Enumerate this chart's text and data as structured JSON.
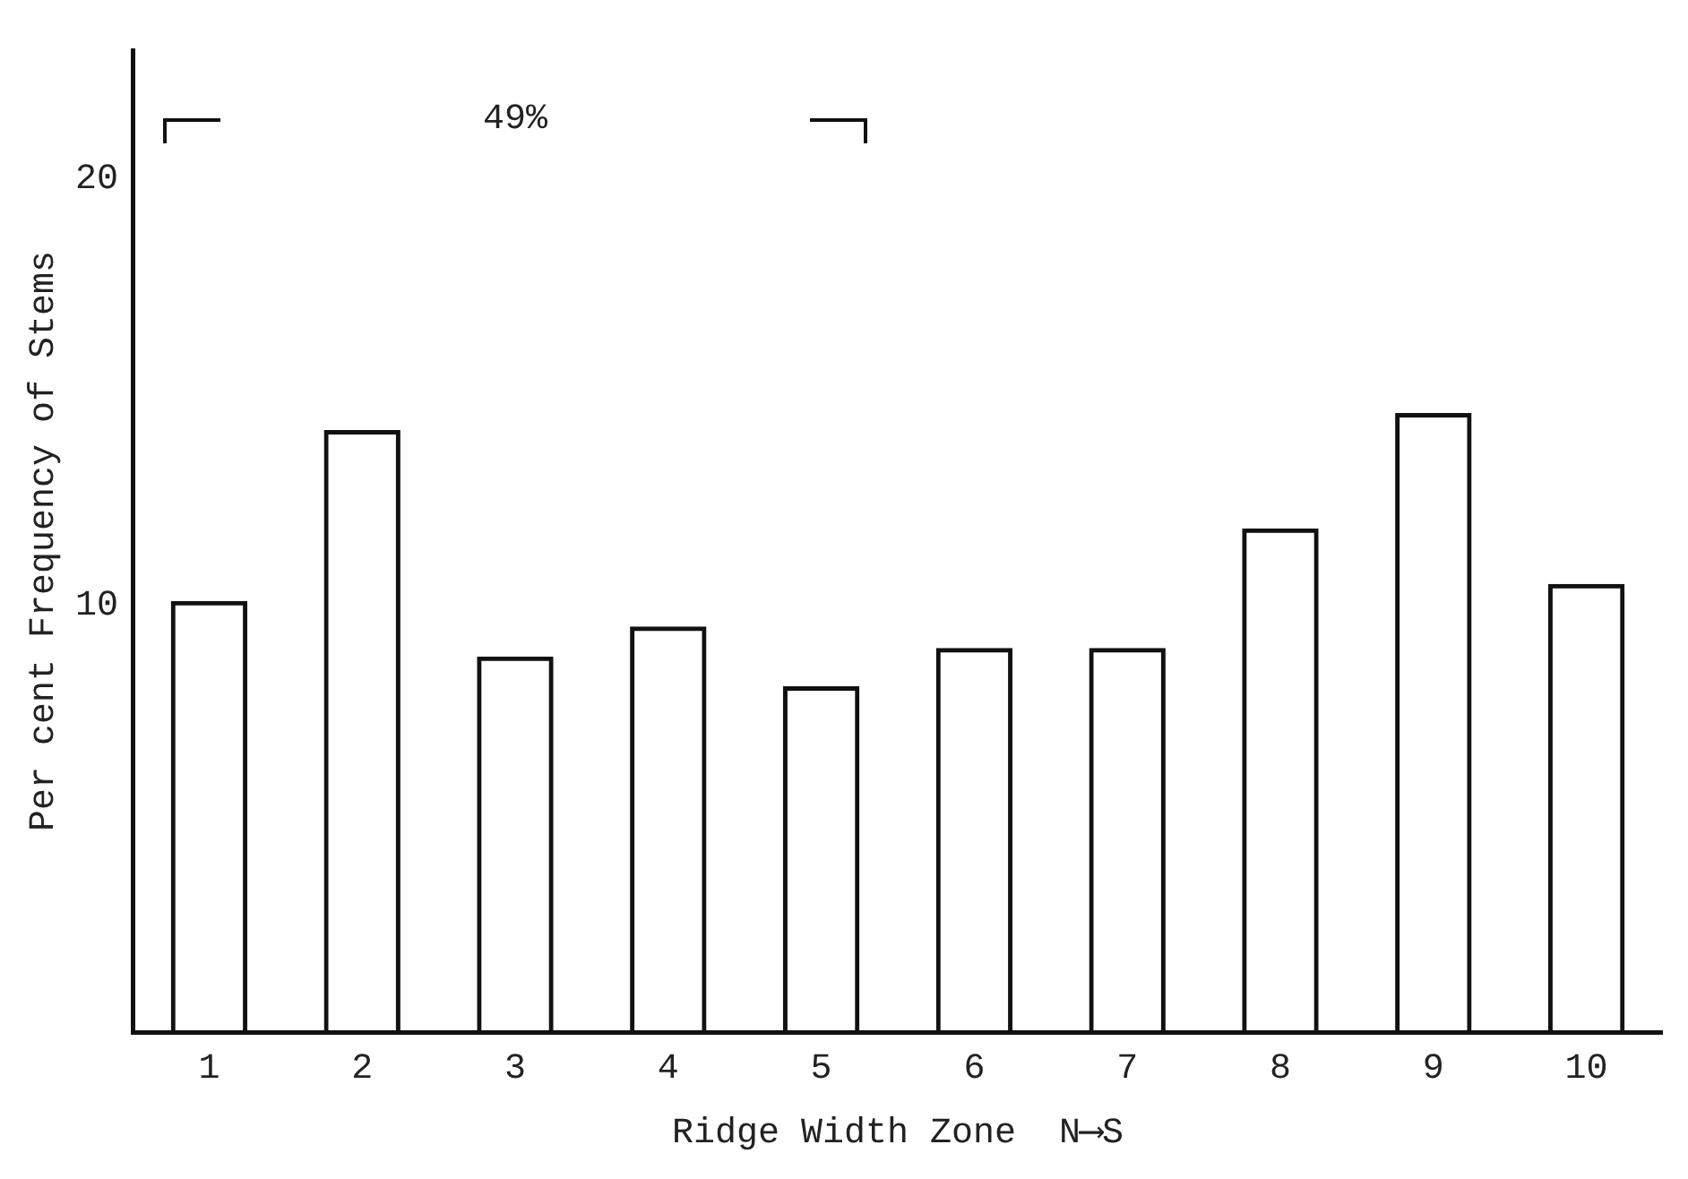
{
  "chart_data": {
    "type": "bar",
    "xlabel": "Ridge Width Zone  N⟶S",
    "ylabel": "Per cent Frequency of Stems",
    "categories": [
      "1",
      "2",
      "3",
      "4",
      "5",
      "6",
      "7",
      "8",
      "9",
      "10"
    ],
    "values": [
      10.1,
      14.1,
      8.8,
      9.5,
      8.1,
      9.0,
      9.0,
      11.8,
      14.5,
      10.5
    ],
    "color": "#111111",
    "ylim": [
      0,
      23
    ],
    "yticks": [
      10,
      20
    ],
    "grid": false,
    "legend": false,
    "annotations": [
      "49%"
    ]
  }
}
